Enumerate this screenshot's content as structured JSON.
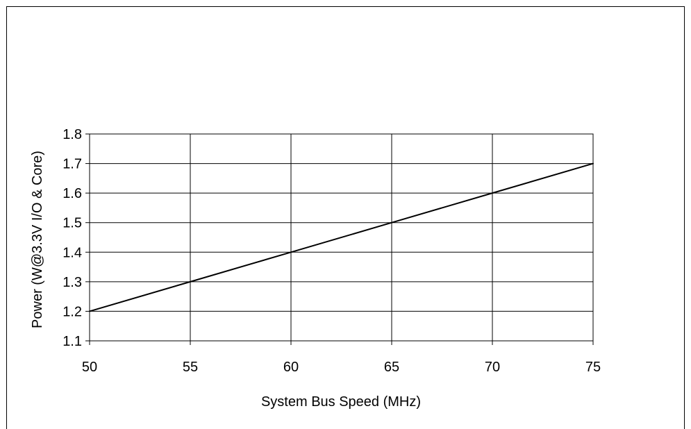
{
  "chart_data": {
    "type": "line",
    "title": "",
    "xlabel": "System Bus Speed (MHz)",
    "ylabel": "Power (W@3.3V I/O & Core)",
    "x": [
      50,
      55,
      60,
      65,
      70,
      75
    ],
    "series": [
      {
        "values": [
          1.2,
          1.3,
          1.4,
          1.5,
          1.6,
          1.7
        ]
      }
    ],
    "xticks": [
      "50",
      "55",
      "60",
      "65",
      "70",
      "75"
    ],
    "yticks": [
      "1.1",
      "1.2",
      "1.3",
      "1.4",
      "1.5",
      "1.6",
      "1.7",
      "1.8"
    ],
    "xlim": [
      50,
      75
    ],
    "ylim": [
      1.1,
      1.8
    ],
    "grid": true,
    "legend": "none",
    "colors": {
      "line": "#000000",
      "grid": "#000000",
      "background": "#ffffff"
    }
  }
}
